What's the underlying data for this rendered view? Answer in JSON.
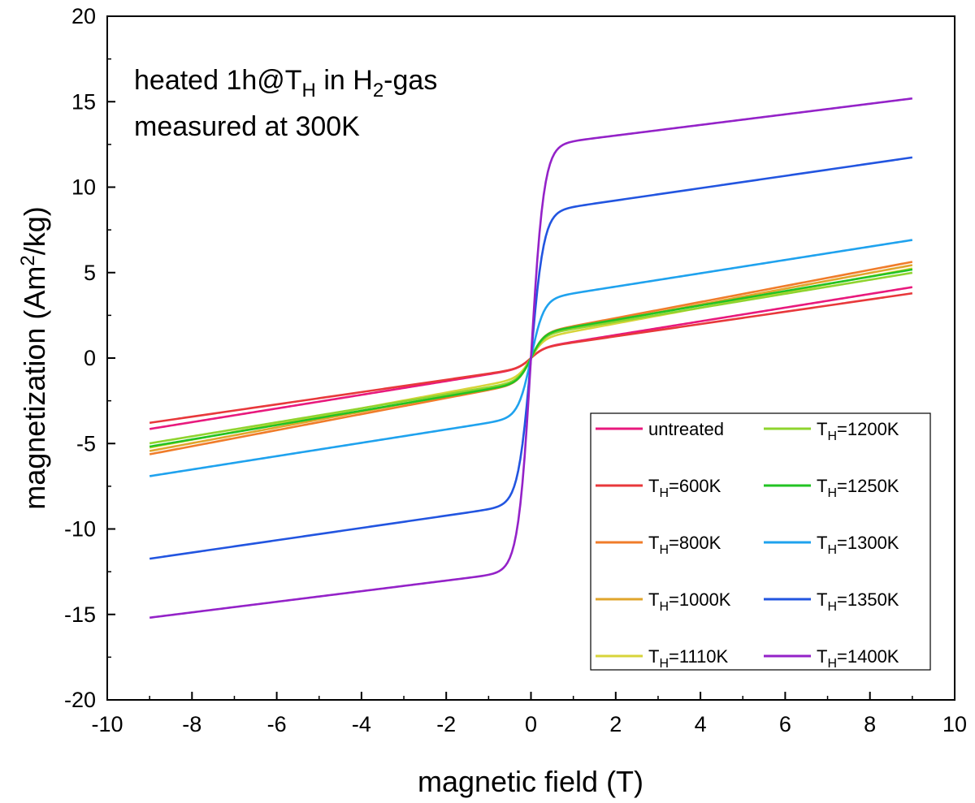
{
  "chart_data": {
    "type": "line",
    "title": "",
    "xlabel": "magnetic field (T)",
    "ylabel_main": "magnetization (Am",
    "ylabel_sup": "2",
    "ylabel_end": "/kg)",
    "xlim": [
      -10,
      10
    ],
    "ylim": [
      -20,
      20
    ],
    "xticks": [
      -10,
      -8,
      -6,
      -4,
      -2,
      0,
      2,
      4,
      6,
      8,
      10
    ],
    "yticks": [
      -20,
      -15,
      -10,
      -5,
      0,
      5,
      10,
      15,
      20
    ],
    "grid": false,
    "legend_position": "bottom-right",
    "annotation_line1": {
      "a": "heated 1h@T",
      "sub": "H",
      "b": " in H",
      "sub2": "2",
      "c": "-gas"
    },
    "annotation_line2": "measured at 300K",
    "series": [
      {
        "name": "untreated",
        "color": "#e8197d",
        "Ms": 0.55,
        "Hs": 0.3,
        "slope": 0.4,
        "legend": {
          "text": "untreated"
        }
      },
      {
        "name": "T_H=600K",
        "color": "#e8383b",
        "Ms": 0.55,
        "Hs": 0.3,
        "slope": 0.36,
        "legend": {
          "pre": "T",
          "sub": "H",
          "post": "=600K"
        }
      },
      {
        "name": "T_H=800K",
        "color": "#f07c2a",
        "Ms": 1.4,
        "Hs": 0.3,
        "slope": 0.47,
        "legend": {
          "pre": "T",
          "sub": "H",
          "post": "=800K"
        }
      },
      {
        "name": "T_H=1000K",
        "color": "#e0a52b",
        "Ms": 1.3,
        "Hs": 0.3,
        "slope": 0.46,
        "legend": {
          "pre": "T",
          "sub": "H",
          "post": "=1000K"
        }
      },
      {
        "name": "T_H=1110K",
        "color": "#d7d43a",
        "Ms": 1.1,
        "Hs": 0.3,
        "slope": 0.46,
        "legend": {
          "pre": "T",
          "sub": "H",
          "post": "=1110K"
        }
      },
      {
        "name": "T_H=1200K",
        "color": "#8fd42e",
        "Ms": 1.3,
        "Hs": 0.3,
        "slope": 0.41,
        "legend": {
          "pre": "T",
          "sub": "H",
          "post": "=1200K"
        }
      },
      {
        "name": "T_H=1250K",
        "color": "#22c323",
        "Ms": 1.4,
        "Hs": 0.3,
        "slope": 0.42,
        "legend": {
          "pre": "T",
          "sub": "H",
          "post": "=1250K"
        }
      },
      {
        "name": "T_H=1300K",
        "color": "#1fa2ee",
        "Ms": 3.4,
        "Hs": 0.3,
        "slope": 0.39,
        "legend": {
          "pre": "T",
          "sub": "H",
          "post": "=1300K"
        }
      },
      {
        "name": "T_H=1350K",
        "color": "#2255e0",
        "Ms": 8.5,
        "Hs": 0.3,
        "slope": 0.36,
        "legend": {
          "pre": "T",
          "sub": "H",
          "post": "=1350K"
        }
      },
      {
        "name": "T_H=1400K",
        "color": "#9422c8",
        "Ms": 12.4,
        "Hs": 0.3,
        "slope": 0.31,
        "legend": {
          "pre": "T",
          "sub": "H",
          "post": "=1400K"
        }
      }
    ]
  }
}
